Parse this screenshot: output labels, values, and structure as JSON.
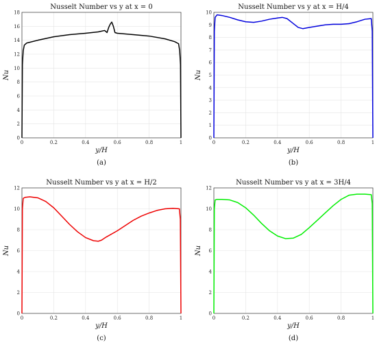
{
  "chart_data": [
    {
      "type": "line",
      "panel_label": "(a)",
      "title": "Nusselt Number vs y at x = 0",
      "xlabel": "y/H",
      "ylabel": "Nu",
      "xlim": [
        0,
        1
      ],
      "ylim": [
        0,
        18
      ],
      "xticks": [
        "0",
        "0.2",
        "0.4",
        "0.6",
        "0.8",
        "1"
      ],
      "yticks": [
        "0",
        "2",
        "4",
        "6",
        "8",
        "10",
        "12",
        "14",
        "16",
        "18"
      ],
      "grid": true,
      "color": "#000000",
      "series": [
        {
          "x": [
            0,
            0.003,
            0.008,
            0.015,
            0.03,
            0.1,
            0.2,
            0.3,
            0.4,
            0.48,
            0.52,
            0.535,
            0.545,
            0.555,
            0.565,
            0.575,
            0.585,
            0.6,
            0.7,
            0.8,
            0.9,
            0.96,
            0.985,
            0.992,
            0.997,
            1
          ],
          "y": [
            0,
            10.5,
            12.5,
            13.3,
            13.6,
            14.0,
            14.5,
            14.8,
            15.0,
            15.2,
            15.4,
            15.1,
            15.8,
            16.3,
            16.6,
            16.0,
            15.1,
            15.0,
            14.8,
            14.6,
            14.2,
            13.8,
            13.5,
            12.5,
            10.5,
            0
          ]
        }
      ]
    },
    {
      "type": "line",
      "panel_label": "(b)",
      "title": "Nusselt Number vs y at x = H/4",
      "xlabel": "y/H",
      "ylabel": "Nu",
      "xlim": [
        0,
        1
      ],
      "ylim": [
        0,
        10
      ],
      "xticks": [
        "0",
        "0.2",
        "0.4",
        "0.6",
        "0.8",
        "1"
      ],
      "yticks": [
        "0",
        "1",
        "2",
        "3",
        "4",
        "5",
        "6",
        "7",
        "8",
        "9",
        "10"
      ],
      "grid": true,
      "color": "#0000dd",
      "series": [
        {
          "x": [
            0,
            0.003,
            0.008,
            0.02,
            0.05,
            0.1,
            0.15,
            0.2,
            0.25,
            0.3,
            0.35,
            0.4,
            0.43,
            0.46,
            0.5,
            0.53,
            0.56,
            0.6,
            0.65,
            0.7,
            0.75,
            0.8,
            0.85,
            0.9,
            0.95,
            0.99,
            0.996,
            1
          ],
          "y": [
            0,
            8.5,
            9.6,
            9.8,
            9.75,
            9.6,
            9.4,
            9.25,
            9.2,
            9.3,
            9.45,
            9.55,
            9.6,
            9.5,
            9.1,
            8.8,
            8.7,
            8.8,
            8.9,
            9.0,
            9.05,
            9.05,
            9.1,
            9.25,
            9.45,
            9.5,
            8.5,
            0
          ]
        }
      ]
    },
    {
      "type": "line",
      "panel_label": "(c)",
      "title": "Nusselt Number vs y at x = H/2",
      "xlabel": "y/H",
      "ylabel": "Nu",
      "xlim": [
        0,
        1
      ],
      "ylim": [
        0,
        12
      ],
      "xticks": [
        "0",
        "0.2",
        "0.4",
        "0.6",
        "0.8",
        "1"
      ],
      "yticks": [
        "0",
        "2",
        "4",
        "6",
        "8",
        "10",
        "12"
      ],
      "grid": true,
      "color": "#ee0000",
      "series": [
        {
          "x": [
            0,
            0.003,
            0.008,
            0.02,
            0.05,
            0.1,
            0.15,
            0.2,
            0.25,
            0.3,
            0.35,
            0.4,
            0.45,
            0.48,
            0.5,
            0.53,
            0.6,
            0.65,
            0.7,
            0.75,
            0.8,
            0.85,
            0.9,
            0.95,
            0.99,
            0.996,
            1
          ],
          "y": [
            0,
            10.0,
            11.0,
            11.1,
            11.15,
            11.05,
            10.7,
            10.1,
            9.3,
            8.5,
            7.8,
            7.25,
            6.95,
            6.9,
            7.0,
            7.3,
            7.9,
            8.4,
            8.9,
            9.3,
            9.6,
            9.85,
            10.0,
            10.05,
            10.0,
            9.0,
            0
          ]
        }
      ]
    },
    {
      "type": "line",
      "panel_label": "(d)",
      "title": "Nusselt Number vs y at x = 3H/4",
      "xlabel": "y/H",
      "ylabel": "Nu",
      "xlim": [
        0,
        1
      ],
      "ylim": [
        0,
        12
      ],
      "xticks": [
        "0",
        "0.2",
        "0.4",
        "0.6",
        "0.8",
        "1"
      ],
      "yticks": [
        "0",
        "2",
        "4",
        "6",
        "8",
        "10",
        "12"
      ],
      "grid": true,
      "color": "#00ee00",
      "series": [
        {
          "x": [
            0,
            0.003,
            0.008,
            0.02,
            0.05,
            0.1,
            0.15,
            0.2,
            0.25,
            0.3,
            0.35,
            0.4,
            0.45,
            0.5,
            0.55,
            0.6,
            0.65,
            0.7,
            0.75,
            0.8,
            0.85,
            0.9,
            0.95,
            0.99,
            0.996,
            1
          ],
          "y": [
            0,
            10.0,
            10.85,
            10.9,
            10.9,
            10.85,
            10.6,
            10.1,
            9.4,
            8.6,
            7.9,
            7.4,
            7.15,
            7.2,
            7.55,
            8.2,
            8.9,
            9.6,
            10.3,
            10.9,
            11.3,
            11.4,
            11.4,
            11.35,
            10.5,
            0
          ]
        }
      ]
    }
  ]
}
